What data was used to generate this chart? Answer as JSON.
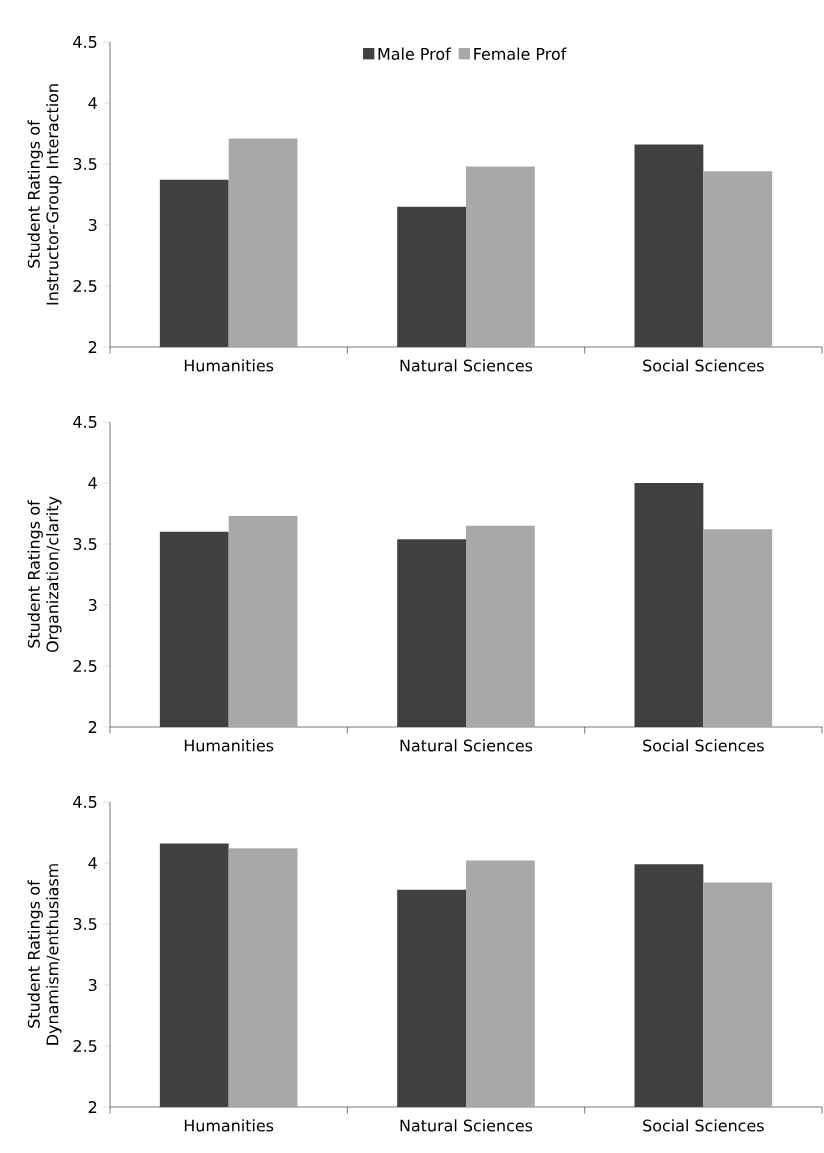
{
  "chart_data": [
    {
      "type": "bar",
      "ylabel": "Student Ratings of Instructor-Group Interaction",
      "categories": [
        "Humanities",
        "Natural Sciences",
        "Social Sciences"
      ],
      "ylim": [
        2,
        4.5
      ],
      "yticks": [
        2,
        2.5,
        3,
        3.5,
        4,
        4.5
      ],
      "legend": "top",
      "series": [
        {
          "name": "Male Prof",
          "color": "#404040",
          "values": [
            3.37,
            3.15,
            3.66
          ]
        },
        {
          "name": "Female Prof",
          "color": "#a8a8a8",
          "values": [
            3.71,
            3.48,
            3.44
          ]
        }
      ]
    },
    {
      "type": "bar",
      "ylabel": "Student Ratings of Organization/clarity",
      "categories": [
        "Humanities",
        "Natural Sciences",
        "Social Sciences"
      ],
      "ylim": [
        2,
        4.5
      ],
      "yticks": [
        2,
        2.5,
        3,
        3.5,
        4,
        4.5
      ],
      "series": [
        {
          "color": "#404040",
          "values": [
            3.6,
            3.54,
            4.0
          ]
        },
        {
          "color": "#a8a8a8",
          "values": [
            3.73,
            3.65,
            3.62
          ]
        }
      ]
    },
    {
      "type": "bar",
      "ylabel": "Student Ratings of Dynamism/enthusiasm",
      "categories": [
        "Humanities",
        "Natural Sciences",
        "Social Sciences"
      ],
      "ylim": [
        2,
        4.5
      ],
      "yticks": [
        2,
        2.5,
        3,
        3.5,
        4,
        4.5
      ],
      "series": [
        {
          "color": "#404040",
          "values": [
            4.16,
            3.78,
            3.99
          ]
        },
        {
          "color": "#a8a8a8",
          "values": [
            4.12,
            4.02,
            3.84
          ]
        }
      ]
    }
  ]
}
